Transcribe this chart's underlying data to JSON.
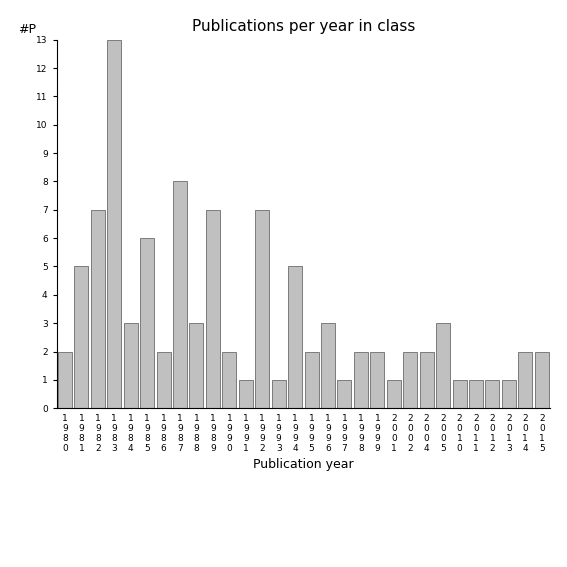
{
  "title": "Publications per year in class",
  "xlabel": "Publication year",
  "ylabel": "#P",
  "bar_color": "#C0C0C0",
  "bar_edgecolor": "#555555",
  "ylim": [
    0,
    13
  ],
  "yticks": [
    0,
    1,
    2,
    3,
    4,
    5,
    6,
    7,
    8,
    9,
    10,
    11,
    12,
    13
  ],
  "categories": [
    "1980",
    "1981",
    "1982",
    "1983",
    "1984",
    "1985",
    "1986",
    "1987",
    "1988",
    "1989",
    "1990",
    "1991",
    "1992",
    "1993",
    "1994",
    "1995",
    "1996",
    "1997",
    "1998",
    "1999",
    "2001",
    "2002",
    "2004",
    "2005",
    "2010",
    "2011",
    "2012",
    "2013",
    "2014",
    "2015"
  ],
  "values": [
    2,
    5,
    7,
    13,
    3,
    6,
    2,
    8,
    3,
    7,
    2,
    1,
    7,
    1,
    5,
    2,
    3,
    1,
    2,
    2,
    1,
    2,
    2,
    3,
    1,
    1,
    1,
    1,
    2,
    2
  ],
  "title_fontsize": 11,
  "label_fontsize": 9,
  "tick_fontsize": 6.5
}
